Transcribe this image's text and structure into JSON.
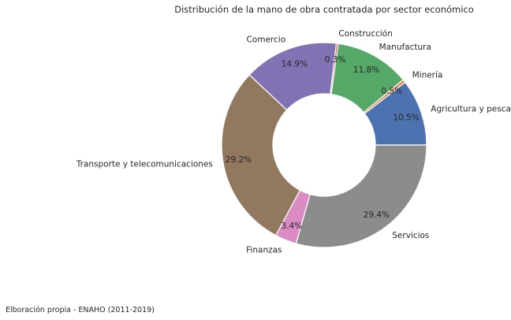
{
  "chart_data": {
    "type": "pie",
    "donut": true,
    "title": "Distribución de la mano de obra contratada por sector económico",
    "slices": [
      {
        "label": "Agricultura y pesca",
        "value": 10.5,
        "pct_label": "10.5%",
        "color": "#4c72b0"
      },
      {
        "label": "Minería",
        "value": 0.5,
        "pct_label": "0.5%",
        "color": "#dd8452"
      },
      {
        "label": "Manufactura",
        "value": 11.8,
        "pct_label": "11.8%",
        "color": "#55a868"
      },
      {
        "label": "Construcción",
        "value": 0.3,
        "pct_label": "0.3%",
        "color": "#c44e52"
      },
      {
        "label": "Comercio",
        "value": 14.9,
        "pct_label": "14.9%",
        "color": "#8172b3"
      },
      {
        "label": "Transporte y telecomunicaciones",
        "value": 29.2,
        "pct_label": "29.2%",
        "color": "#937860"
      },
      {
        "label": "Finanzas",
        "value": 3.4,
        "pct_label": "3.4%",
        "color": "#da8bc3"
      },
      {
        "label": "Servicios",
        "value": 29.4,
        "pct_label": "29.4%",
        "color": "#8c8c8c"
      }
    ],
    "start_angle_deg": 0,
    "direction": "counterclockwise"
  },
  "source_note": "Elboración propia - ENAHO (2011-2019)"
}
